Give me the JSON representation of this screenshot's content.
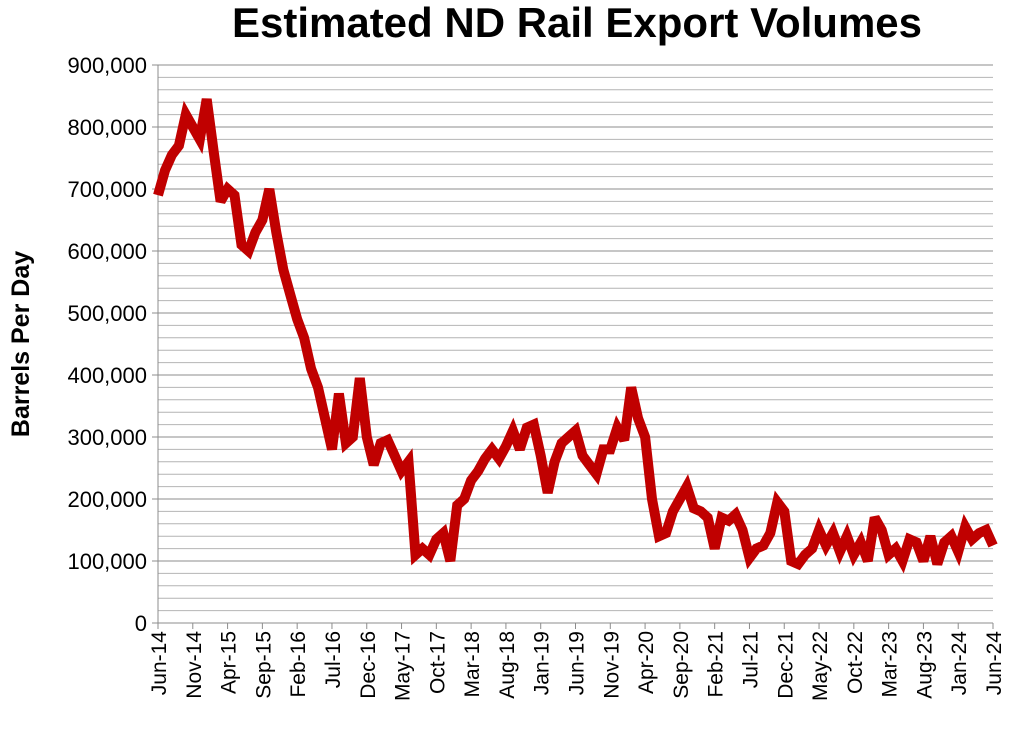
{
  "chart_data": {
    "type": "line",
    "title": "Estimated ND Rail Export Volumes",
    "xlabel": "",
    "ylabel": "Barrels Per Day",
    "ylim": [
      0,
      900000
    ],
    "y_major_step": 100000,
    "y_minor_step": 20000,
    "grid": true,
    "y_tick_labels": [
      "0",
      "100,000",
      "200,000",
      "300,000",
      "400,000",
      "500,000",
      "600,000",
      "700,000",
      "800,000",
      "900,000"
    ],
    "x_start": "Jun-14",
    "x_end": "Jun-24",
    "x_tick_labels": [
      "Jun-14",
      "Nov-14",
      "Apr-15",
      "Sep-15",
      "Feb-16",
      "Jul-16",
      "Dec-16",
      "May-17",
      "Oct-17",
      "Mar-18",
      "Aug-18",
      "Jan-19",
      "Jun-19",
      "Nov-19",
      "Apr-20",
      "Sep-20",
      "Feb-21",
      "Jul-21",
      "Dec-21",
      "May-22",
      "Oct-22",
      "Mar-23",
      "Aug-23",
      "Jan-24",
      "Jun-24"
    ],
    "x_tick_every_months": 5,
    "series": [
      {
        "name": "Estimated ND Rail Export Volumes",
        "color": "#C00000",
        "values": [
          690000,
          730000,
          755000,
          770000,
          820000,
          800000,
          780000,
          845000,
          760000,
          680000,
          700000,
          690000,
          610000,
          600000,
          630000,
          650000,
          700000,
          630000,
          570000,
          530000,
          490000,
          460000,
          410000,
          380000,
          330000,
          280000,
          370000,
          290000,
          300000,
          395000,
          300000,
          255000,
          290000,
          295000,
          270000,
          245000,
          260000,
          110000,
          120000,
          110000,
          135000,
          145000,
          100000,
          190000,
          200000,
          230000,
          245000,
          265000,
          280000,
          265000,
          285000,
          310000,
          280000,
          315000,
          320000,
          270000,
          210000,
          260000,
          290000,
          300000,
          310000,
          270000,
          255000,
          240000,
          280000,
          280000,
          315000,
          295000,
          380000,
          330000,
          300000,
          200000,
          140000,
          145000,
          180000,
          200000,
          220000,
          185000,
          180000,
          170000,
          120000,
          170000,
          165000,
          175000,
          150000,
          105000,
          120000,
          125000,
          145000,
          195000,
          180000,
          100000,
          95000,
          110000,
          120000,
          150000,
          125000,
          145000,
          115000,
          140000,
          110000,
          130000,
          100000,
          170000,
          150000,
          110000,
          120000,
          100000,
          135000,
          130000,
          100000,
          140000,
          95000,
          130000,
          140000,
          115000,
          155000,
          135000,
          145000,
          150000,
          125000
        ]
      }
    ]
  }
}
